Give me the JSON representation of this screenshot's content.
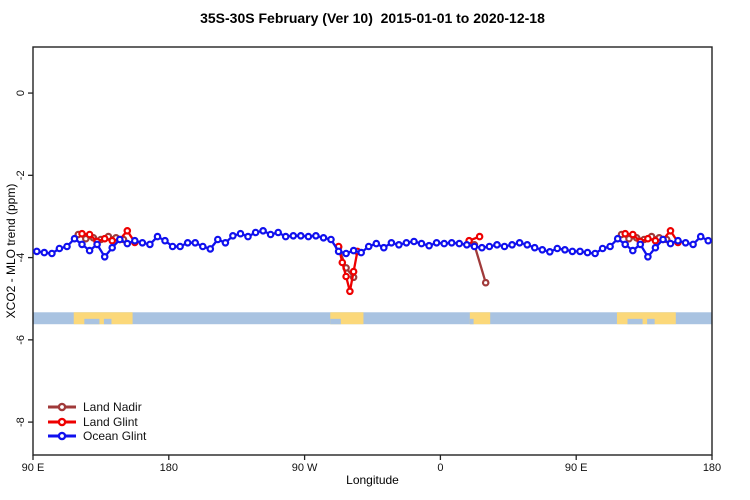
{
  "chart_data": {
    "type": "line",
    "title": "35S-30S February (Ver 10)  2015-01-01 to 2020-12-18",
    "xlabel": "Longitude",
    "ylabel": "XCO2 - MLO trend (ppm)",
    "xlim_deg": [
      0,
      450
    ],
    "ylim_ppm": [
      -8.8,
      1.12
    ],
    "grid": false,
    "x_ticks": [
      {
        "deg": 0,
        "label": "90 E"
      },
      {
        "deg": 90,
        "label": "180"
      },
      {
        "deg": 180,
        "label": "90 W"
      },
      {
        "deg": 270,
        "label": "0"
      },
      {
        "deg": 360,
        "label": "90 E"
      },
      {
        "deg": 450,
        "label": "180"
      }
    ],
    "y_ticks": [
      {
        "ppm": 0,
        "label": "0"
      },
      {
        "ppm": -2,
        "label": "-2"
      },
      {
        "ppm": -4,
        "label": "-4"
      },
      {
        "ppm": -6,
        "label": "-6"
      },
      {
        "ppm": -8,
        "label": "-8"
      }
    ],
    "map_band": {
      "ppm_top": -5.33,
      "ppm_bottom": -5.62,
      "ocean_color": "#A9C3E1",
      "land_color": "#FBD87A",
      "land_patches": [
        {
          "start": 27,
          "end": 66,
          "notches": [
            [
              34,
              44
            ],
            [
              47,
              52
            ]
          ]
        },
        {
          "start": 197,
          "end": 219,
          "notches": [
            [
              197,
              204
            ]
          ]
        },
        {
          "start": 289.5,
          "end": 303,
          "notches": [
            [
              289.5,
              292
            ]
          ]
        },
        {
          "start": 387,
          "end": 426,
          "notches": [
            [
              394,
              404
            ],
            [
              407,
              412
            ]
          ]
        }
      ]
    },
    "series": [
      {
        "name": "Land Nadir",
        "color": "#A03A3A",
        "segments": [
          [
            [
              30,
              -3.44
            ],
            [
              35,
              -3.54
            ],
            [
              40,
              -3.52
            ],
            [
              45,
              -3.56
            ],
            [
              50,
              -3.49
            ],
            [
              55,
              -3.52
            ],
            [
              60,
              -3.56
            ]
          ],
          [
            [
              202.5,
              -3.75
            ],
            [
              207.5,
              -4.25
            ],
            [
              212.5,
              -4.48
            ]
          ],
          [
            [
              292.5,
              -3.69
            ],
            [
              300,
              -4.61
            ]
          ],
          [
            [
              390,
              -3.44
            ],
            [
              395,
              -3.54
            ],
            [
              400,
              -3.52
            ],
            [
              405,
              -3.56
            ],
            [
              410,
              -3.49
            ],
            [
              415,
              -3.52
            ],
            [
              420,
              -3.56
            ]
          ]
        ]
      },
      {
        "name": "Land Glint",
        "color": "#EE0000",
        "segments": [
          [
            [
              32.5,
              -3.42
            ],
            [
              37.5,
              -3.44
            ],
            [
              42.5,
              -3.61
            ],
            [
              47.5,
              -3.54
            ],
            [
              52.5,
              -3.59
            ],
            [
              57.5,
              -3.56
            ],
            [
              62.5,
              -3.35
            ],
            [
              67.5,
              -3.63
            ]
          ],
          [
            [
              202.5,
              -3.73
            ],
            [
              205,
              -4.12
            ],
            [
              207.5,
              -4.46
            ],
            [
              210,
              -4.82
            ],
            [
              212.5,
              -4.34
            ],
            [
              215,
              -3.85
            ]
          ],
          [
            [
              289,
              -3.59
            ],
            [
              296,
              -3.49
            ]
          ],
          [
            [
              392.5,
              -3.42
            ],
            [
              397.5,
              -3.44
            ],
            [
              402.5,
              -3.61
            ],
            [
              407.5,
              -3.54
            ],
            [
              412.5,
              -3.59
            ],
            [
              417.5,
              -3.56
            ],
            [
              422.5,
              -3.35
            ],
            [
              427.5,
              -3.63
            ]
          ]
        ]
      },
      {
        "name": "Ocean Glint",
        "color": "#1010EE",
        "segments": [
          [
            [
              2.5,
              -3.85
            ],
            [
              7.5,
              -3.88
            ],
            [
              12.5,
              -3.9
            ],
            [
              17.5,
              -3.78
            ],
            [
              22.5,
              -3.73
            ],
            [
              27.5,
              -3.54
            ],
            [
              32.5,
              -3.68
            ],
            [
              37.5,
              -3.83
            ],
            [
              42.5,
              -3.68
            ],
            [
              47.5,
              -3.98
            ],
            [
              52.5,
              -3.76
            ],
            [
              57.5,
              -3.56
            ],
            [
              62.5,
              -3.66
            ],
            [
              67.5,
              -3.59
            ],
            [
              72.5,
              -3.64
            ],
            [
              77.5,
              -3.68
            ],
            [
              82.5,
              -3.49
            ],
            [
              87.5,
              -3.59
            ],
            [
              92.5,
              -3.73
            ],
            [
              97.5,
              -3.73
            ],
            [
              102.5,
              -3.64
            ],
            [
              107.5,
              -3.64
            ],
            [
              112.5,
              -3.73
            ],
            [
              117.5,
              -3.79
            ],
            [
              122.5,
              -3.56
            ],
            [
              127.5,
              -3.64
            ],
            [
              132.5,
              -3.47
            ],
            [
              137.5,
              -3.42
            ],
            [
              142.5,
              -3.49
            ],
            [
              147.5,
              -3.39
            ],
            [
              152.5,
              -3.35
            ],
            [
              157.5,
              -3.44
            ],
            [
              162.5,
              -3.39
            ],
            [
              167.5,
              -3.49
            ],
            [
              172.5,
              -3.47
            ],
            [
              177.5,
              -3.47
            ],
            [
              182.5,
              -3.49
            ],
            [
              187.5,
              -3.47
            ],
            [
              192.5,
              -3.52
            ],
            [
              197.5,
              -3.56
            ],
            [
              202.5,
              -3.85
            ],
            [
              207.5,
              -3.9
            ],
            [
              212.5,
              -3.83
            ],
            [
              217.5,
              -3.88
            ],
            [
              222.5,
              -3.73
            ],
            [
              227.5,
              -3.66
            ],
            [
              232.5,
              -3.76
            ],
            [
              237.5,
              -3.64
            ],
            [
              242.5,
              -3.69
            ],
            [
              247.5,
              -3.64
            ],
            [
              252.5,
              -3.61
            ],
            [
              257.5,
              -3.66
            ],
            [
              262.5,
              -3.71
            ],
            [
              267.5,
              -3.64
            ],
            [
              272.5,
              -3.66
            ],
            [
              277.5,
              -3.64
            ],
            [
              282.5,
              -3.66
            ],
            [
              287.5,
              -3.69
            ],
            [
              292.5,
              -3.73
            ],
            [
              297.5,
              -3.76
            ],
            [
              302.5,
              -3.73
            ],
            [
              307.5,
              -3.69
            ],
            [
              312.5,
              -3.73
            ],
            [
              317.5,
              -3.69
            ],
            [
              322.5,
              -3.64
            ],
            [
              327.5,
              -3.69
            ],
            [
              332.5,
              -3.76
            ],
            [
              337.5,
              -3.81
            ],
            [
              342.5,
              -3.86
            ],
            [
              347.5,
              -3.78
            ],
            [
              352.5,
              -3.81
            ],
            [
              357.5,
              -3.85
            ],
            [
              362.5,
              -3.85
            ],
            [
              367.5,
              -3.88
            ],
            [
              372.5,
              -3.9
            ],
            [
              377.5,
              -3.78
            ],
            [
              382.5,
              -3.73
            ],
            [
              387.5,
              -3.54
            ],
            [
              392.5,
              -3.68
            ],
            [
              397.5,
              -3.83
            ],
            [
              402.5,
              -3.68
            ],
            [
              407.5,
              -3.98
            ],
            [
              412.5,
              -3.76
            ],
            [
              417.5,
              -3.56
            ],
            [
              422.5,
              -3.66
            ],
            [
              427.5,
              -3.59
            ],
            [
              432.5,
              -3.64
            ],
            [
              437.5,
              -3.68
            ],
            [
              442.5,
              -3.49
            ],
            [
              447.5,
              -3.59
            ]
          ]
        ]
      }
    ],
    "legend": {
      "position": "bottom-left",
      "entries": [
        {
          "label": "Land Nadir",
          "color": "#A03A3A"
        },
        {
          "label": "Land Glint",
          "color": "#EE0000"
        },
        {
          "label": "Ocean Glint",
          "color": "#1010EE"
        }
      ]
    },
    "axis_color": "#222222"
  }
}
